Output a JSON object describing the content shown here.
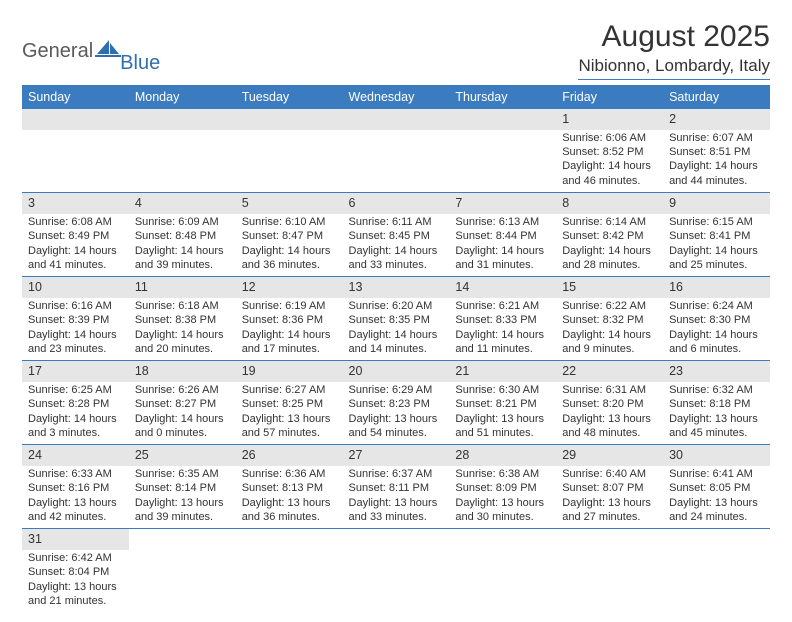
{
  "brand": {
    "part1": "General",
    "part2": "Blue"
  },
  "title": "August 2025",
  "location": "Nibionno, Lombardy, Italy",
  "colors": {
    "header_bg": "#3b7bbf",
    "header_text": "#ffffff",
    "daynum_bg": "#e6e6e6",
    "text": "#333333",
    "rule": "#3b7bbf",
    "logo_gray": "#5a5a5a",
    "logo_blue": "#2f6fb0"
  },
  "weekdays": [
    "Sunday",
    "Monday",
    "Tuesday",
    "Wednesday",
    "Thursday",
    "Friday",
    "Saturday"
  ],
  "weeks": [
    [
      null,
      null,
      null,
      null,
      null,
      {
        "n": "1",
        "sunrise": "Sunrise: 6:06 AM",
        "sunset": "Sunset: 8:52 PM",
        "daylight": "Daylight: 14 hours and 46 minutes."
      },
      {
        "n": "2",
        "sunrise": "Sunrise: 6:07 AM",
        "sunset": "Sunset: 8:51 PM",
        "daylight": "Daylight: 14 hours and 44 minutes."
      }
    ],
    [
      {
        "n": "3",
        "sunrise": "Sunrise: 6:08 AM",
        "sunset": "Sunset: 8:49 PM",
        "daylight": "Daylight: 14 hours and 41 minutes."
      },
      {
        "n": "4",
        "sunrise": "Sunrise: 6:09 AM",
        "sunset": "Sunset: 8:48 PM",
        "daylight": "Daylight: 14 hours and 39 minutes."
      },
      {
        "n": "5",
        "sunrise": "Sunrise: 6:10 AM",
        "sunset": "Sunset: 8:47 PM",
        "daylight": "Daylight: 14 hours and 36 minutes."
      },
      {
        "n": "6",
        "sunrise": "Sunrise: 6:11 AM",
        "sunset": "Sunset: 8:45 PM",
        "daylight": "Daylight: 14 hours and 33 minutes."
      },
      {
        "n": "7",
        "sunrise": "Sunrise: 6:13 AM",
        "sunset": "Sunset: 8:44 PM",
        "daylight": "Daylight: 14 hours and 31 minutes."
      },
      {
        "n": "8",
        "sunrise": "Sunrise: 6:14 AM",
        "sunset": "Sunset: 8:42 PM",
        "daylight": "Daylight: 14 hours and 28 minutes."
      },
      {
        "n": "9",
        "sunrise": "Sunrise: 6:15 AM",
        "sunset": "Sunset: 8:41 PM",
        "daylight": "Daylight: 14 hours and 25 minutes."
      }
    ],
    [
      {
        "n": "10",
        "sunrise": "Sunrise: 6:16 AM",
        "sunset": "Sunset: 8:39 PM",
        "daylight": "Daylight: 14 hours and 23 minutes."
      },
      {
        "n": "11",
        "sunrise": "Sunrise: 6:18 AM",
        "sunset": "Sunset: 8:38 PM",
        "daylight": "Daylight: 14 hours and 20 minutes."
      },
      {
        "n": "12",
        "sunrise": "Sunrise: 6:19 AM",
        "sunset": "Sunset: 8:36 PM",
        "daylight": "Daylight: 14 hours and 17 minutes."
      },
      {
        "n": "13",
        "sunrise": "Sunrise: 6:20 AM",
        "sunset": "Sunset: 8:35 PM",
        "daylight": "Daylight: 14 hours and 14 minutes."
      },
      {
        "n": "14",
        "sunrise": "Sunrise: 6:21 AM",
        "sunset": "Sunset: 8:33 PM",
        "daylight": "Daylight: 14 hours and 11 minutes."
      },
      {
        "n": "15",
        "sunrise": "Sunrise: 6:22 AM",
        "sunset": "Sunset: 8:32 PM",
        "daylight": "Daylight: 14 hours and 9 minutes."
      },
      {
        "n": "16",
        "sunrise": "Sunrise: 6:24 AM",
        "sunset": "Sunset: 8:30 PM",
        "daylight": "Daylight: 14 hours and 6 minutes."
      }
    ],
    [
      {
        "n": "17",
        "sunrise": "Sunrise: 6:25 AM",
        "sunset": "Sunset: 8:28 PM",
        "daylight": "Daylight: 14 hours and 3 minutes."
      },
      {
        "n": "18",
        "sunrise": "Sunrise: 6:26 AM",
        "sunset": "Sunset: 8:27 PM",
        "daylight": "Daylight: 14 hours and 0 minutes."
      },
      {
        "n": "19",
        "sunrise": "Sunrise: 6:27 AM",
        "sunset": "Sunset: 8:25 PM",
        "daylight": "Daylight: 13 hours and 57 minutes."
      },
      {
        "n": "20",
        "sunrise": "Sunrise: 6:29 AM",
        "sunset": "Sunset: 8:23 PM",
        "daylight": "Daylight: 13 hours and 54 minutes."
      },
      {
        "n": "21",
        "sunrise": "Sunrise: 6:30 AM",
        "sunset": "Sunset: 8:21 PM",
        "daylight": "Daylight: 13 hours and 51 minutes."
      },
      {
        "n": "22",
        "sunrise": "Sunrise: 6:31 AM",
        "sunset": "Sunset: 8:20 PM",
        "daylight": "Daylight: 13 hours and 48 minutes."
      },
      {
        "n": "23",
        "sunrise": "Sunrise: 6:32 AM",
        "sunset": "Sunset: 8:18 PM",
        "daylight": "Daylight: 13 hours and 45 minutes."
      }
    ],
    [
      {
        "n": "24",
        "sunrise": "Sunrise: 6:33 AM",
        "sunset": "Sunset: 8:16 PM",
        "daylight": "Daylight: 13 hours and 42 minutes."
      },
      {
        "n": "25",
        "sunrise": "Sunrise: 6:35 AM",
        "sunset": "Sunset: 8:14 PM",
        "daylight": "Daylight: 13 hours and 39 minutes."
      },
      {
        "n": "26",
        "sunrise": "Sunrise: 6:36 AM",
        "sunset": "Sunset: 8:13 PM",
        "daylight": "Daylight: 13 hours and 36 minutes."
      },
      {
        "n": "27",
        "sunrise": "Sunrise: 6:37 AM",
        "sunset": "Sunset: 8:11 PM",
        "daylight": "Daylight: 13 hours and 33 minutes."
      },
      {
        "n": "28",
        "sunrise": "Sunrise: 6:38 AM",
        "sunset": "Sunset: 8:09 PM",
        "daylight": "Daylight: 13 hours and 30 minutes."
      },
      {
        "n": "29",
        "sunrise": "Sunrise: 6:40 AM",
        "sunset": "Sunset: 8:07 PM",
        "daylight": "Daylight: 13 hours and 27 minutes."
      },
      {
        "n": "30",
        "sunrise": "Sunrise: 6:41 AM",
        "sunset": "Sunset: 8:05 PM",
        "daylight": "Daylight: 13 hours and 24 minutes."
      }
    ],
    [
      {
        "n": "31",
        "sunrise": "Sunrise: 6:42 AM",
        "sunset": "Sunset: 8:04 PM",
        "daylight": "Daylight: 13 hours and 21 minutes."
      },
      null,
      null,
      null,
      null,
      null,
      null
    ]
  ]
}
